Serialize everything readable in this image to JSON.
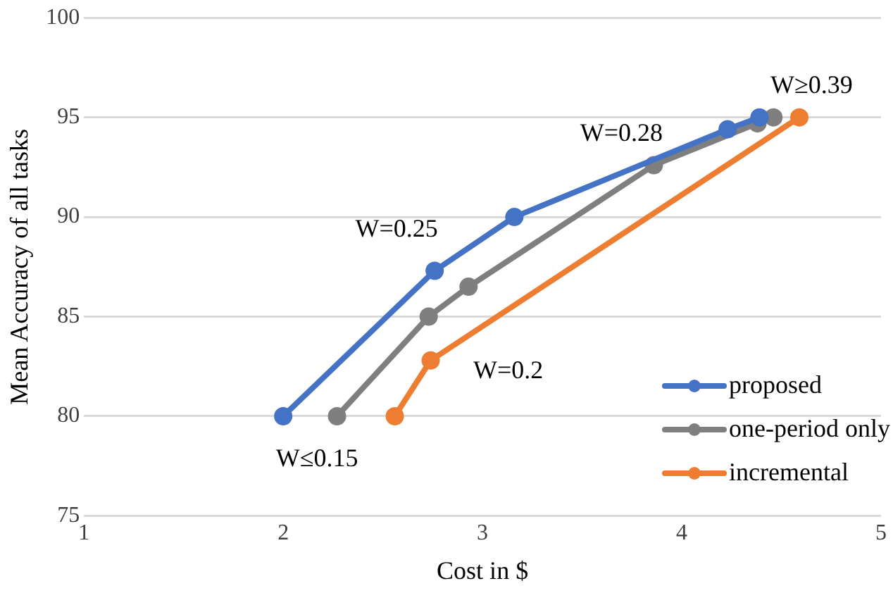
{
  "chart_data": {
    "type": "line",
    "xlabel": "Cost in $",
    "ylabel": "Mean Accuracy of all tasks",
    "xlim": [
      1,
      5
    ],
    "xticks": [
      1,
      2,
      3,
      4,
      5
    ],
    "ylim": [
      75,
      100
    ],
    "yticks": [
      75,
      80,
      85,
      90,
      95,
      100
    ],
    "grid": "y",
    "legend": "bottom right",
    "marker": "circle",
    "line_style": "solid",
    "series": [
      {
        "name": "proposed",
        "color": "#4472c4",
        "x": [
          2.0,
          2.76,
          3.16,
          4.23,
          4.39
        ],
        "values": [
          80.0,
          87.3,
          90.0,
          94.4,
          95.0
        ]
      },
      {
        "name": "one-period only",
        "color": "#7f7f7f",
        "x": [
          2.27,
          2.73,
          2.93,
          3.86,
          4.38,
          4.46
        ],
        "values": [
          80.0,
          85.0,
          86.5,
          92.6,
          94.7,
          95.0
        ]
      },
      {
        "name": "incremental",
        "color": "#ed7d31",
        "x": [
          2.56,
          2.74,
          4.59
        ],
        "values": [
          80.0,
          82.8,
          95.0
        ]
      }
    ],
    "annotations": [
      {
        "text": "W≤0.15",
        "x": 2.0,
        "y": 80.0
      },
      {
        "text": "W=0.25",
        "x": 2.76,
        "y": 87.3
      },
      {
        "text": "W=0.28",
        "x": 3.86,
        "y": 92.6
      },
      {
        "text": "W≥0.39",
        "x": 4.39,
        "y": 95.0
      },
      {
        "text": "W=0.2",
        "x": 2.74,
        "y": 82.8
      }
    ]
  }
}
